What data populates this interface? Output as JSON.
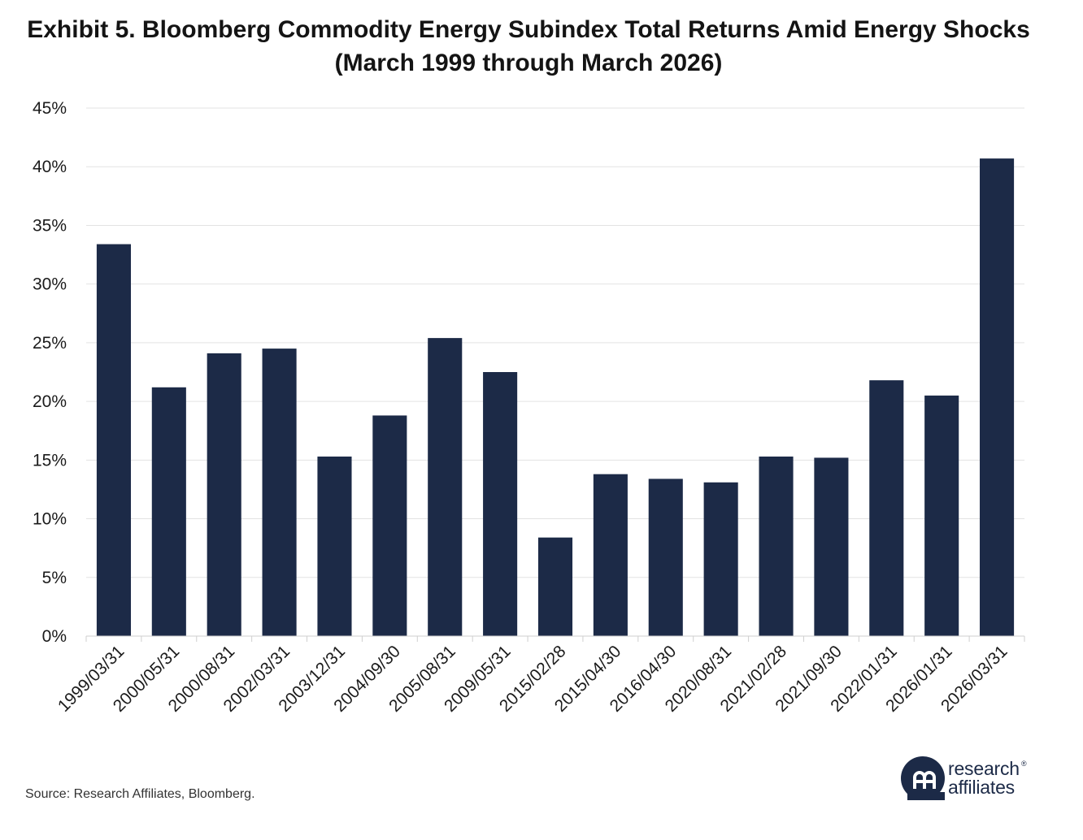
{
  "chart_data": {
    "type": "bar",
    "title": "Exhibit 5. Bloomberg Commodity Energy Subindex Total Returns Amid Energy Shocks",
    "subtitle": "(March 1999 through March 2026)",
    "categories": [
      "1999/03/31",
      "2000/05/31",
      "2000/08/31",
      "2002/03/31",
      "2003/12/31",
      "2004/09/30",
      "2005/08/31",
      "2009/05/31",
      "2015/02/28",
      "2015/04/30",
      "2016/04/30",
      "2020/08/31",
      "2021/02/28",
      "2021/09/30",
      "2022/01/31",
      "2026/01/31",
      "2026/03/31"
    ],
    "values": [
      33.4,
      21.2,
      24.1,
      24.5,
      15.3,
      18.8,
      25.4,
      22.5,
      8.4,
      13.8,
      13.4,
      13.1,
      15.3,
      15.2,
      21.8,
      20.5,
      40.7
    ],
    "yticks": [
      "0%",
      "5%",
      "10%",
      "15%",
      "20%",
      "25%",
      "30%",
      "35%",
      "40%",
      "45%"
    ],
    "ylim": [
      0,
      45
    ],
    "grid": true,
    "bar_color": "#1c2a47",
    "grid_color": "#e3e3e3"
  },
  "source": "Source: Research Affiliates, Bloomberg.",
  "logo": {
    "line1": "research",
    "line2": "affiliates",
    "reg": "®",
    "color": "#1c2a47"
  }
}
